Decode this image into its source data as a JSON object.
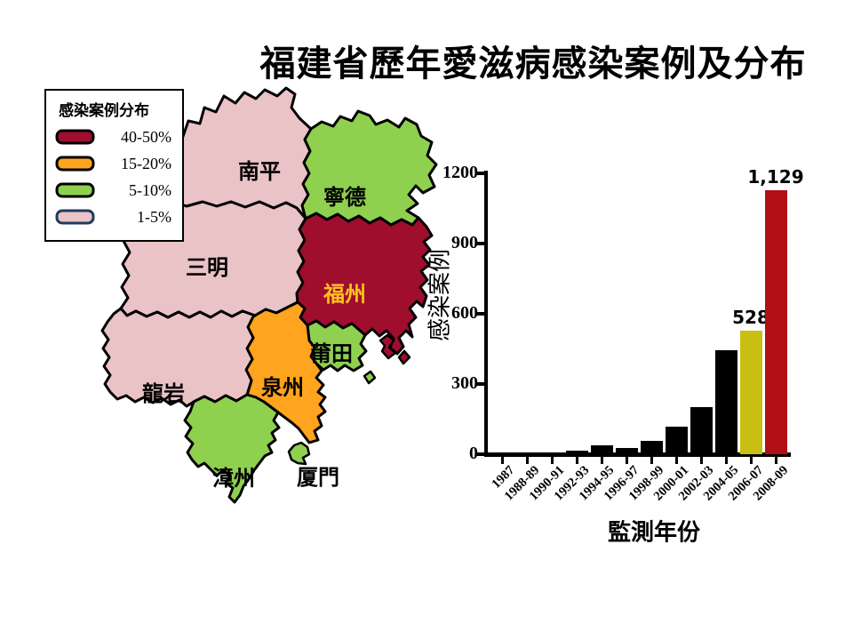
{
  "title": "福建省歷年愛滋病感染案例及分布",
  "legend": {
    "title": "感染案例分布",
    "items": [
      {
        "label": "40-50%",
        "color": "#A00E2D",
        "border": "#000000"
      },
      {
        "label": "15-20%",
        "color": "#FFA41E",
        "border": "#000000"
      },
      {
        "label": "5-10%",
        "color": "#8FD04F",
        "border": "#000000"
      },
      {
        "label": "1-5%",
        "color": "#EAC3C6",
        "border": "#223A5E"
      }
    ]
  },
  "map": {
    "regions": [
      {
        "name": "南平",
        "level": "1-5%",
        "color": "#EAC3C6",
        "label_color": "#000000"
      },
      {
        "name": "寧德",
        "level": "5-10%",
        "color": "#8FD04F",
        "label_color": "#000000"
      },
      {
        "name": "三明",
        "level": "1-5%",
        "color": "#EAC3C6",
        "label_color": "#000000"
      },
      {
        "name": "福州",
        "level": "40-50%",
        "color": "#A00E2D",
        "label_color": "#FFC41A"
      },
      {
        "name": "莆田",
        "level": "5-10%",
        "color": "#8FD04F",
        "label_color": "#000000"
      },
      {
        "name": "泉州",
        "level": "15-20%",
        "color": "#FFA41E",
        "label_color": "#000000"
      },
      {
        "name": "龍岩",
        "level": "1-5%",
        "color": "#EAC3C6",
        "label_color": "#000000"
      },
      {
        "name": "漳州",
        "level": "5-10%",
        "color": "#8FD04F",
        "label_color": "#000000"
      },
      {
        "name": "厦門",
        "level": "5-10%",
        "color": "#8FD04F",
        "label_color": "#000000"
      }
    ]
  },
  "chart_data": {
    "type": "bar",
    "title": "",
    "xlabel": "監測年份",
    "ylabel": "感染案例",
    "categories": [
      "1987",
      "1988-89",
      "1990-91",
      "1992-93",
      "1994-95",
      "1996-97",
      "1998-99",
      "2000-01",
      "2002-03",
      "2004-05",
      "2006-07",
      "2008-09"
    ],
    "values": [
      1,
      3,
      8,
      16,
      37,
      28,
      58,
      119,
      202,
      445,
      528,
      1129
    ],
    "bar_colors": [
      "#000000",
      "#000000",
      "#000000",
      "#000000",
      "#000000",
      "#000000",
      "#000000",
      "#000000",
      "#000000",
      "#000000",
      "#C9BF12",
      "#B01015"
    ],
    "bar_labels": [
      "",
      "",
      "",
      "",
      "",
      "",
      "",
      "",
      "",
      "",
      "528",
      "1,129"
    ],
    "yticks": [
      0,
      300,
      600,
      900,
      1200
    ],
    "ylim": [
      0,
      1200
    ],
    "grid": false,
    "legend_position": "none"
  }
}
